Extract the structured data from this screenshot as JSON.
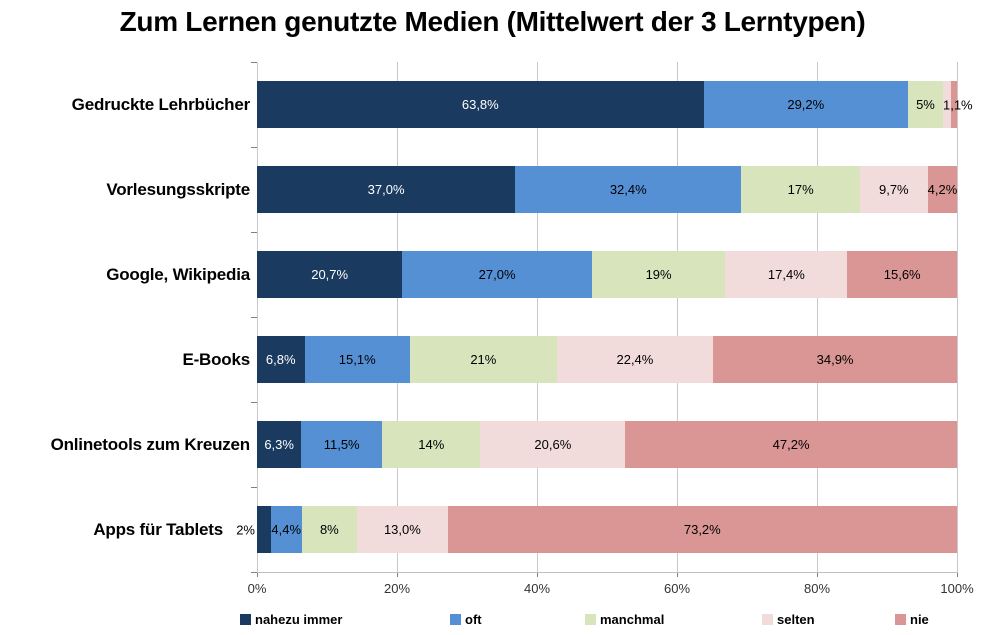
{
  "title": "Zum Lernen genutzte Medien (Mittelwert der 3 Lerntypen)",
  "chart_data": {
    "type": "bar",
    "orientation": "horizontal",
    "stacked": true,
    "unit": "%",
    "xlim": [
      0,
      100
    ],
    "x_ticks": [
      "0%",
      "20%",
      "40%",
      "60%",
      "80%",
      "100%"
    ],
    "grid": "vertical",
    "legend_position": "bottom",
    "categories": [
      "Gedruckte Lehrbücher",
      "Vorlesungsskripte",
      "Google, Wikipedia",
      "E-Books",
      "Onlinetools zum Kreuzen",
      "Apps für Tablets"
    ],
    "series": [
      {
        "name": "nahezu immer",
        "color": "#1B3A5F",
        "values": [
          63.8,
          37.0,
          20.7,
          6.8,
          6.3,
          2.0
        ],
        "labels": [
          "63,8%",
          "37,0%",
          "20,7%",
          "6,8%",
          "6,3%",
          "2%"
        ]
      },
      {
        "name": "oft",
        "color": "#5590D5",
        "values": [
          29.2,
          32.4,
          27.0,
          15.1,
          11.5,
          4.4
        ],
        "labels": [
          "29,2%",
          "32,4%",
          "27,0%",
          "15,1%",
          "11,5%",
          "4,4%"
        ]
      },
      {
        "name": "manchmal",
        "color": "#D7E4BC",
        "values": [
          5.0,
          17.0,
          19.0,
          21.0,
          14.0,
          8.0
        ],
        "labels": [
          "5%",
          "17%",
          "19%",
          "21%",
          "14%",
          "8%"
        ]
      },
      {
        "name": "selten",
        "color": "#F2DCDB",
        "values": [
          1.1,
          9.7,
          17.4,
          22.4,
          20.6,
          13.0
        ],
        "labels": [
          "1,1%",
          "9,7%",
          "17,4%",
          "22,4%",
          "20,6%",
          "13,0%"
        ]
      },
      {
        "name": "nie",
        "color": "#D99694",
        "values": [
          0.9,
          4.2,
          15.6,
          34.9,
          47.2,
          73.2
        ],
        "labels": [
          "",
          "4,2%",
          "15,6%",
          "34,9%",
          "47,2%",
          "73,2%"
        ]
      }
    ],
    "label_overrides": [
      {
        "category": 0,
        "series": 3,
        "placement": "outside-end"
      },
      {
        "category": 5,
        "series": 0,
        "placement": "outside-start"
      }
    ]
  },
  "colors": {
    "background": "#FFFFFF",
    "title": "#000000",
    "category_label": "#000000",
    "value_label": "#000000",
    "value_label_on_dark": "#FFFFFF",
    "gridline": "#C9C9C9",
    "axis_line": "#BFBFBF",
    "tick": "#808080",
    "axis_label": "#333333",
    "legend_label": "#000000"
  }
}
